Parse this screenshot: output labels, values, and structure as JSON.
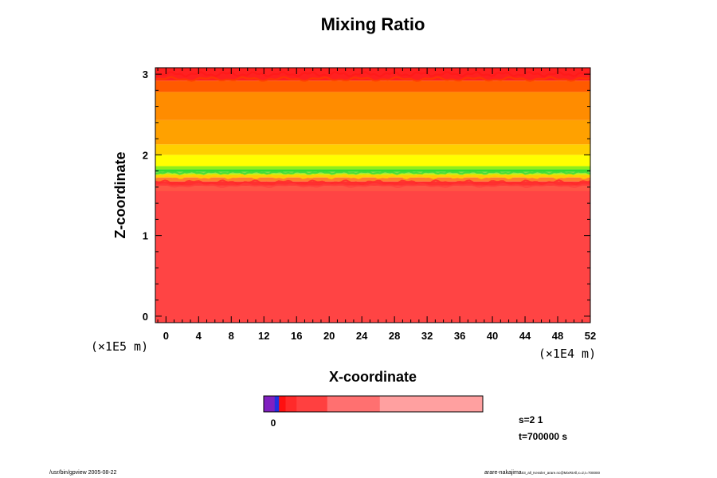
{
  "chart_data": {
    "type": "heatmap",
    "title": "Mixing Ratio",
    "xlabel": "X-coordinate",
    "ylabel": "Z-coordinate",
    "x_scale_note": "(×1E4 m)",
    "y_scale_note": "(×1E5 m)",
    "xlim": [
      -1.3,
      52
    ],
    "ylim": [
      -0.08,
      3.08
    ],
    "x_ticks": [
      0,
      4,
      8,
      12,
      16,
      20,
      24,
      28,
      32,
      36,
      40,
      44,
      48,
      52
    ],
    "x_tick_labels": [
      "0",
      "4",
      "8",
      "12",
      "16",
      "20",
      "24",
      "28",
      "32",
      "36",
      "40",
      "44",
      "48",
      "52"
    ],
    "y_ticks": [
      0,
      1,
      2,
      3
    ],
    "y_tick_labels": [
      "0",
      "1",
      "2",
      "3"
    ],
    "y_minor_step": 0.2,
    "x_minor_step": 1,
    "bands": [
      {
        "z0": -0.08,
        "z1": 1.65,
        "color": "#ff4444"
      },
      {
        "z0": 1.55,
        "z1": 1.62,
        "color": "#ff5545"
      },
      {
        "z0": 1.62,
        "z1": 1.67,
        "color": "#ff3030"
      },
      {
        "z0": 1.67,
        "z1": 1.72,
        "color": "#ff7e2d"
      },
      {
        "z0": 1.72,
        "z1": 1.75,
        "color": "#ffc800"
      },
      {
        "z0": 1.75,
        "z1": 1.77,
        "color": "#c8ee00"
      },
      {
        "z0": 1.77,
        "z1": 1.79,
        "color": "#7be34a"
      },
      {
        "z0": 1.79,
        "z1": 1.82,
        "color": "#2fdd2f"
      },
      {
        "z0": 1.82,
        "z1": 1.86,
        "color": "#8eef19"
      },
      {
        "z0": 1.86,
        "z1": 2.0,
        "color": "#ffff00"
      },
      {
        "z0": 2.0,
        "z1": 2.13,
        "color": "#ffcf00"
      },
      {
        "z0": 2.13,
        "z1": 2.43,
        "color": "#ffa100"
      },
      {
        "z0": 2.43,
        "z1": 2.78,
        "color": "#ff8c00"
      },
      {
        "z0": 2.78,
        "z1": 2.92,
        "color": "#ff5a00"
      },
      {
        "z0": 2.92,
        "z1": 3.08,
        "color": "#ff2020"
      }
    ],
    "colorbar": {
      "tick_label": "0",
      "segments": [
        {
          "w": 0.05,
          "color": "#8020c0"
        },
        {
          "w": 0.02,
          "color": "#2030e0"
        },
        {
          "w": 0.03,
          "color": "#ff1010"
        },
        {
          "w": 0.05,
          "color": "#ff2a2a"
        },
        {
          "w": 0.14,
          "color": "#ff4040"
        },
        {
          "w": 0.24,
          "color": "#ff7070"
        },
        {
          "w": 0.47,
          "color": "#ffa0a0"
        }
      ]
    }
  },
  "annotations": {
    "s_label": "s=2 1",
    "t_label": "t=700000 s"
  },
  "footer": {
    "left": "/usr/bin/gpview 2005-08-22",
    "right_main": "arare-nakajima",
    "right_sub": "03_all_Kessler_arare.nc@MixRtAll,x=2,t=700000"
  },
  "colors": {
    "axis": "#000000",
    "background": "#ffffff"
  }
}
